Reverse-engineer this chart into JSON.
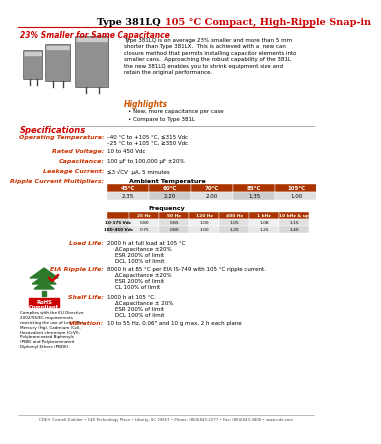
{
  "title_black": "Type 381LQ ",
  "title_red": "105 °C Compact, High-Ripple Snap-in",
  "subtitle": "23% Smaller for Same Capacitance",
  "body_text": "Type 381LQ is on average 23% smaller and more than 5 mm\nshorter than Type 381LX.  This is achieved with a  new can\nclosure method that permits installing capacitor elements into\nsmaller cans.  Approaching the robust capability of the 381L\nthe new 381LQ enables you to shrink equipment size and\nretain the original performance.",
  "highlights_title": "Highlights",
  "highlights": [
    "New, more capacitance per case",
    "Compare to Type 381L"
  ],
  "specs_title": "Specifications",
  "spec_labels": [
    "Operating Temperature:",
    "Rated Voltage:",
    "Capacitance:",
    "Leakage Current:",
    "Ripple Current Multipliers:"
  ],
  "spec_values": [
    "–40 °C to +105 °C, ≤315 Vdc\n–25 °C to +105 °C, ≥350 Vdc",
    "10 to 450 Vdc",
    "100 μF to 100,000 μF ±20%",
    "≤3 √CV  μA, 5 minutes",
    "Ambient Temperature"
  ],
  "amb_temp_headers": [
    "45°C",
    "60°C",
    "70°C",
    "85°C",
    "105°C"
  ],
  "amb_temp_values": [
    "2.35",
    "2.20",
    "2.00",
    "1.35",
    "1.00"
  ],
  "freq_label": "Frequency",
  "freq_headers": [
    "25 Hz",
    "50 Hz",
    "120 Hz",
    "400 Hz",
    "1 kHz",
    "10 kHz & up"
  ],
  "freq_row1_label": "10-175 Vdc",
  "freq_row1": [
    "0.80",
    "0.85",
    "1.00",
    "1.05",
    "1.08",
    "1.15"
  ],
  "freq_row2_label": "180-450 Vdc",
  "freq_row2": [
    "0.75",
    "0.80",
    "1.00",
    "1.20",
    "1.25",
    "1.40"
  ],
  "load_life_label": "Load Life:",
  "load_life_line1": "2000 h at full load at 105 °C",
  "load_life_lines": [
    "ΔCapacitance ±20%",
    "ESR 200% of limit",
    "DCL 100% of limit"
  ],
  "eia_label": "EIA Ripple Life:",
  "eia_line1": "8000 h at 85 °C per EIA IS-749 with 105 °C ripple current.",
  "eia_lines": [
    "ΔCapacitance ±20%",
    "ESR 200% of limit",
    "CL 100% of limit"
  ],
  "shelf_label": "Shelf Life:",
  "shelf_line1": "1000 h at 105 °C.",
  "shelf_lines": [
    "ΔCapacitance ± 20%",
    "ESR 200% of limit",
    "DCL 100% of limit"
  ],
  "vib_label": "Vibration:",
  "vib": "10 to 55 Hz, 0.06\" and 10 g max, 2 h each plane",
  "footer": "CDE® Cornell Dubilier • 140 Technology Place • Liberty, SC 29657 • Phone: (864)843-2277 • Fax: (864)843-3800 • www.cde.com",
  "rohs_label": "RoHS\nCompliant",
  "rohs_text": "Complies with the EU Directive\n2002/95/EC requirements\nrestricting the use of Lead (Pb),\nMercury (Hg), Cadmium (Cd),\nHexavalent chromium (CrVI),\nPolybrominated Biphenyls\n(PBB) and Polybrominated\nDiphenyl Ethers (PBDE).",
  "red_color": "#cc0000",
  "orange_color": "#cc5500",
  "label_color": "#cc3300",
  "table_header_bg": "#aa3300",
  "green_color": "#2d7a2d"
}
